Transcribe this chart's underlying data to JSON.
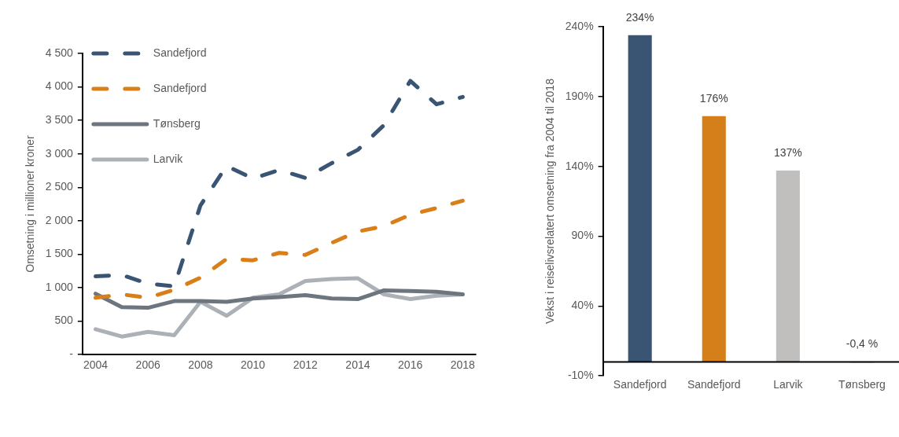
{
  "chart_data": [
    {
      "type": "line",
      "ylabel": "Omsetning i millioner kroner",
      "x": [
        2004,
        2005,
        2006,
        2007,
        2008,
        2009,
        2010,
        2011,
        2012,
        2013,
        2014,
        2015,
        2016,
        2017,
        2018
      ],
      "xlim": [
        2003.5,
        2018.5
      ],
      "xticks": [
        2004,
        2006,
        2008,
        2010,
        2012,
        2014,
        2016,
        2018
      ],
      "ylim": [
        0,
        4500
      ],
      "yticks": [
        {
          "value": 0,
          "label": "-"
        },
        500,
        {
          "value": 1000,
          "label": "1 000"
        },
        {
          "value": 1500,
          "label": "1 500"
        },
        {
          "value": 2000,
          "label": "2 000"
        },
        {
          "value": 2500,
          "label": "2 500"
        },
        {
          "value": 3000,
          "label": "3 000"
        },
        {
          "value": 3500,
          "label": "3 500"
        },
        {
          "value": 4000,
          "label": "4 000"
        },
        {
          "value": 4500,
          "label": "4 500"
        }
      ],
      "legend": "top left",
      "marker": "none",
      "series": [
        {
          "name": "Sandefjord",
          "color": "#3a5573",
          "line_style": "dashed",
          "values": [
            1170,
            1190,
            1060,
            1020,
            2230,
            2820,
            2630,
            2760,
            2640,
            2860,
            3060,
            3430,
            4090,
            3740,
            3850
          ]
        },
        {
          "name": "Sandefjord",
          "color": "#d97f1a",
          "line_style": "dashed",
          "values": [
            850,
            900,
            850,
            970,
            1150,
            1430,
            1410,
            1520,
            1490,
            1670,
            1840,
            1920,
            2090,
            2190,
            2300
          ]
        },
        {
          "name": "Tønsberg",
          "color": "#6d767e",
          "line_style": "solid",
          "values": [
            910,
            710,
            700,
            800,
            800,
            790,
            840,
            860,
            890,
            840,
            830,
            960,
            950,
            940,
            900
          ]
        },
        {
          "name": "Larvik",
          "color": "#abb1b6",
          "line_style": "solid",
          "values": [
            380,
            270,
            340,
            290,
            790,
            580,
            850,
            900,
            1100,
            1130,
            1140,
            900,
            830,
            880,
            900
          ]
        }
      ]
    },
    {
      "type": "bar",
      "ylabel": "Vekst i reiselivsrelatert omsetning fra 2004 til 2018",
      "categories": [
        "Sandefjord",
        "Sandefjord",
        "Larvik",
        "Tønsberg"
      ],
      "values": [
        234,
        176,
        137,
        -0.4
      ],
      "colors": [
        "#3a5573",
        "#d57f1b",
        "#c0bfbd",
        "#6d767e"
      ],
      "value_labels": [
        "234%",
        "176%",
        "137%",
        "-0,4 %"
      ],
      "ylim": [
        -10,
        240
      ],
      "yticks": [
        {
          "value": -10,
          "label": "-10%"
        },
        {
          "value": 40,
          "label": "40%"
        },
        {
          "value": 90,
          "label": "90%"
        },
        {
          "value": 140,
          "label": "140%"
        },
        {
          "value": 190,
          "label": "190%"
        },
        {
          "value": 240,
          "label": "240%"
        }
      ]
    }
  ]
}
